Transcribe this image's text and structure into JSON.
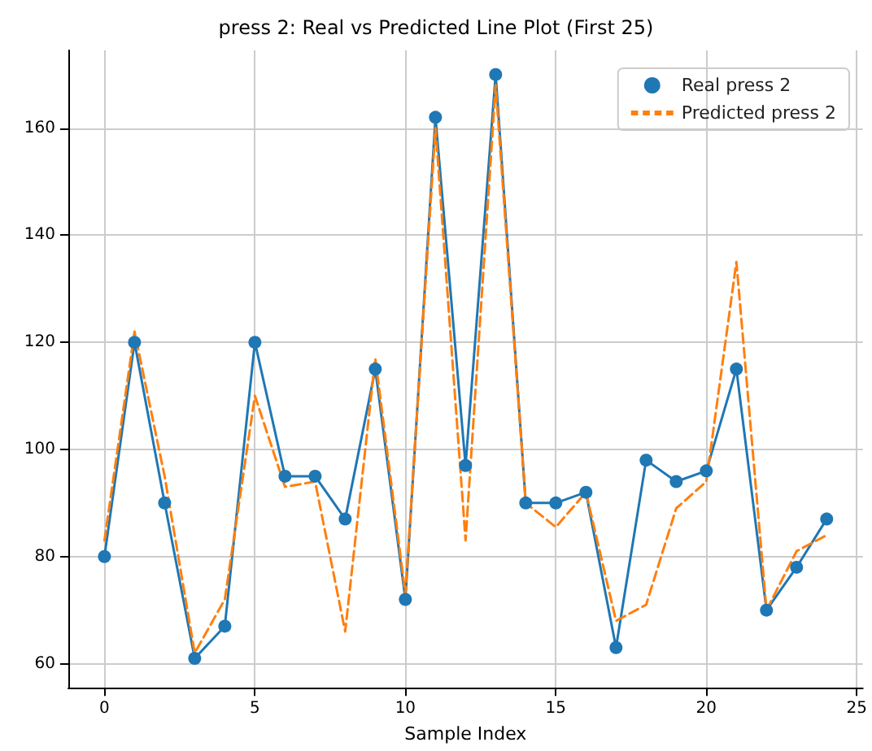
{
  "chart_data": {
    "type": "line",
    "title": "press 2: Real vs Predicted Line Plot (First 25)",
    "xlabel": "Sample Index",
    "x": [
      0,
      1,
      2,
      3,
      4,
      5,
      6,
      7,
      8,
      9,
      10,
      11,
      12,
      13,
      14,
      15,
      16,
      17,
      18,
      19,
      20,
      21,
      22,
      23,
      24
    ],
    "series": [
      {
        "name": "Real press 2",
        "color": "#1f77b4",
        "marker": "circle",
        "line_style": "solid",
        "values": [
          80,
          120,
          90,
          61,
          67,
          120,
          95,
          95,
          87,
          115,
          72,
          162,
          97,
          170,
          90,
          90,
          92,
          63,
          98,
          94,
          96,
          115,
          70,
          78,
          87
        ]
      },
      {
        "name": "Predicted press 2",
        "color": "#ff7f0e",
        "marker": "none",
        "line_style": "dashed",
        "values": [
          83,
          122,
          95,
          62,
          72,
          110,
          93,
          94,
          66,
          117,
          73,
          160,
          83,
          168,
          90,
          85.5,
          92,
          68,
          71,
          89,
          94,
          135,
          70,
          81,
          84
        ]
      }
    ],
    "xlim": [
      -1.2,
      25.2
    ],
    "xticks": [
      0,
      5,
      10,
      15,
      20,
      25
    ],
    "ylim": [
      55.5,
      174.5
    ],
    "yticks": [
      60,
      80,
      100,
      120,
      140,
      160
    ],
    "grid": true,
    "legend": "top right"
  }
}
